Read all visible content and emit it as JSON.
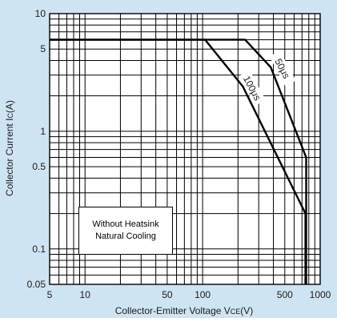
{
  "chart_data": {
    "type": "line",
    "xlabel": "Collector-Emitter Voltage V",
    "xlabel_sub": "CE",
    "xlabel_unit": "(V)",
    "ylabel": "Collector Current I",
    "ylabel_sub": "C",
    "ylabel_unit": "(A)",
    "x_scale": "log",
    "y_scale": "log",
    "xlim": [
      5,
      1000
    ],
    "ylim": [
      0.05,
      10
    ],
    "x_ticks": [
      {
        "value": 5,
        "label": "5"
      },
      {
        "value": 10,
        "label": "10"
      },
      {
        "value": 50,
        "label": "50"
      },
      {
        "value": 100,
        "label": "100"
      },
      {
        "value": 500,
        "label": "500"
      },
      {
        "value": 1000,
        "label": "1000"
      }
    ],
    "y_ticks": [
      {
        "value": 0.05,
        "label": "0.05"
      },
      {
        "value": 0.1,
        "label": "0.1"
      },
      {
        "value": 0.5,
        "label": "0.5"
      },
      {
        "value": 1,
        "label": "1"
      },
      {
        "value": 5,
        "label": "5"
      },
      {
        "value": 10,
        "label": "10"
      }
    ],
    "grid": true,
    "series": [
      {
        "name": "100μs",
        "points": [
          [
            5,
            6
          ],
          [
            105,
            6
          ],
          [
            220,
            2.4
          ],
          [
            750,
            0.2
          ],
          [
            750,
            0.05
          ]
        ]
      },
      {
        "name": "50μs",
        "points": [
          [
            5,
            6
          ],
          [
            230,
            6
          ],
          [
            380,
            3.5
          ],
          [
            760,
            0.6
          ],
          [
            760,
            0.05
          ]
        ]
      }
    ],
    "annotation_lines": [
      "Without Heatsink",
      "Natural Cooling"
    ],
    "colors": {
      "background": "#cfe4f3",
      "plot": "#ffffff",
      "line": "#000000"
    }
  }
}
